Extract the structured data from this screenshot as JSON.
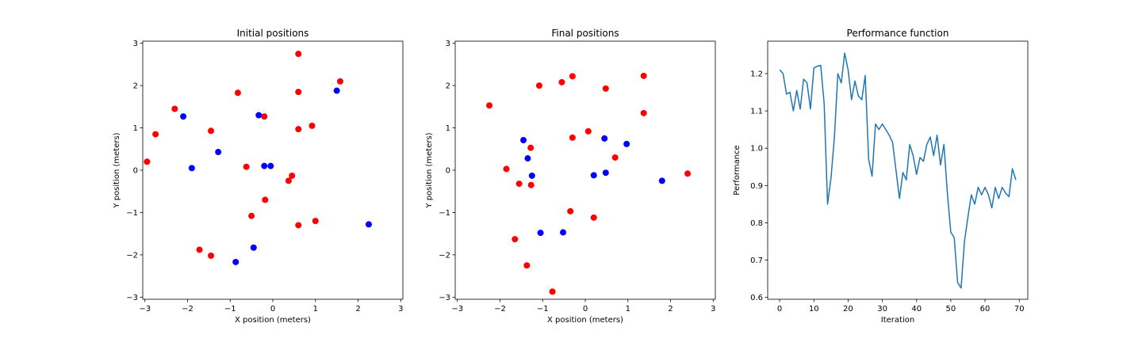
{
  "chart_data": [
    {
      "type": "scatter",
      "title": "Initial positions",
      "xlabel": "X position (meters)",
      "ylabel": "Y position (meters)",
      "xlim": [
        -3.05,
        3.05
      ],
      "ylim": [
        -3.05,
        3.05
      ],
      "xticks": [
        -3,
        -2,
        -1,
        0,
        1,
        2,
        3
      ],
      "yticks": [
        -3,
        -2,
        -1,
        0,
        1,
        2,
        3
      ],
      "grid": false,
      "series": [
        {
          "color": "#ff0000",
          "points": [
            [
              0.6,
              2.75
            ],
            [
              1.58,
              2.1
            ],
            [
              -0.82,
              1.83
            ],
            [
              0.6,
              1.85
            ],
            [
              -2.3,
              1.45
            ],
            [
              -0.2,
              1.27
            ],
            [
              -2.75,
              0.85
            ],
            [
              -1.45,
              0.93
            ],
            [
              0.6,
              0.97
            ],
            [
              0.92,
              1.05
            ],
            [
              -2.95,
              0.2
            ],
            [
              -0.62,
              0.08
            ],
            [
              0.45,
              -0.13
            ],
            [
              0.37,
              -0.25
            ],
            [
              -0.18,
              -0.7
            ],
            [
              -0.5,
              -1.08
            ],
            [
              1.0,
              -1.2
            ],
            [
              0.6,
              -1.3
            ],
            [
              -1.72,
              -1.88
            ],
            [
              -1.45,
              -2.02
            ]
          ]
        },
        {
          "color": "#0000ff",
          "points": [
            [
              1.5,
              1.88
            ],
            [
              -2.1,
              1.27
            ],
            [
              -0.33,
              1.3
            ],
            [
              -1.28,
              0.43
            ],
            [
              -1.9,
              0.05
            ],
            [
              -0.2,
              0.1
            ],
            [
              -0.05,
              0.1
            ],
            [
              2.25,
              -1.28
            ],
            [
              -0.45,
              -1.83
            ],
            [
              -0.87,
              -2.17
            ]
          ]
        }
      ]
    },
    {
      "type": "scatter",
      "title": "Final positions",
      "xlabel": "X position (meters)",
      "ylabel": "Y position (meters)",
      "xlim": [
        -3.05,
        3.05
      ],
      "ylim": [
        -3.05,
        3.05
      ],
      "xticks": [
        -3,
        -2,
        -1,
        0,
        1,
        2,
        3
      ],
      "yticks": [
        -3,
        -2,
        -1,
        0,
        1,
        2,
        3
      ],
      "grid": false,
      "series": [
        {
          "color": "#ff0000",
          "points": [
            [
              -2.25,
              1.53
            ],
            [
              -1.08,
              2.0
            ],
            [
              -0.55,
              2.08
            ],
            [
              -0.3,
              2.22
            ],
            [
              0.48,
              1.93
            ],
            [
              1.37,
              2.23
            ],
            [
              1.37,
              1.35
            ],
            [
              0.07,
              0.92
            ],
            [
              -0.3,
              0.77
            ],
            [
              -1.28,
              0.53
            ],
            [
              -1.85,
              0.03
            ],
            [
              -1.55,
              -0.32
            ],
            [
              -1.27,
              -0.35
            ],
            [
              0.7,
              0.3
            ],
            [
              2.4,
              -0.08
            ],
            [
              -0.35,
              -0.97
            ],
            [
              0.2,
              -1.12
            ],
            [
              -1.65,
              -1.63
            ],
            [
              -1.37,
              -2.25
            ],
            [
              -0.77,
              -2.87
            ]
          ]
        },
        {
          "color": "#0000ff",
          "points": [
            [
              -1.45,
              0.71
            ],
            [
              0.45,
              0.75
            ],
            [
              0.97,
              0.62
            ],
            [
              -1.35,
              0.28
            ],
            [
              -1.25,
              -0.13
            ],
            [
              0.2,
              -0.12
            ],
            [
              0.48,
              -0.06
            ],
            [
              1.8,
              -0.25
            ],
            [
              -1.05,
              -1.48
            ],
            [
              -0.52,
              -1.47
            ]
          ]
        }
      ]
    },
    {
      "type": "line",
      "title": "Performance function",
      "xlabel": "Iteration",
      "ylabel": "Performance",
      "xlim": [
        -3.5,
        72.5
      ],
      "ylim": [
        0.595,
        1.287
      ],
      "xticks": [
        0,
        10,
        20,
        30,
        40,
        50,
        60,
        70
      ],
      "yticks": [
        0.6,
        0.7,
        0.8,
        0.9,
        1.0,
        1.1,
        1.2
      ],
      "grid": false,
      "series": [
        {
          "color": "#1f77b4",
          "x": [
            0,
            1,
            2,
            3,
            4,
            5,
            6,
            7,
            8,
            9,
            10,
            11,
            12,
            13,
            14,
            15,
            16,
            17,
            18,
            19,
            20,
            21,
            22,
            23,
            24,
            25,
            26,
            27,
            28,
            29,
            30,
            31,
            32,
            33,
            34,
            35,
            36,
            37,
            38,
            39,
            40,
            41,
            42,
            43,
            44,
            45,
            46,
            47,
            48,
            49,
            50,
            51,
            52,
            53,
            54,
            55,
            56,
            57,
            58,
            59,
            60,
            61,
            62,
            63,
            64,
            65,
            66,
            67,
            68,
            69
          ],
          "y": [
            1.21,
            1.2,
            1.145,
            1.15,
            1.1,
            1.155,
            1.105,
            1.185,
            1.175,
            1.105,
            1.215,
            1.22,
            1.222,
            1.12,
            0.85,
            0.92,
            1.03,
            1.2,
            1.175,
            1.255,
            1.21,
            1.13,
            1.18,
            1.14,
            1.13,
            1.195,
            0.97,
            0.925,
            1.065,
            1.05,
            1.065,
            1.05,
            1.035,
            1.015,
            0.94,
            0.865,
            0.935,
            0.915,
            1.01,
            0.98,
            0.93,
            0.975,
            0.965,
            1.01,
            1.03,
            0.98,
            1.035,
            0.955,
            1.01,
            0.88,
            0.775,
            0.76,
            0.64,
            0.625,
            0.75,
            0.815,
            0.875,
            0.85,
            0.895,
            0.875,
            0.895,
            0.875,
            0.84,
            0.895,
            0.865,
            0.895,
            0.88,
            0.87,
            0.945,
            0.915
          ]
        }
      ]
    }
  ]
}
